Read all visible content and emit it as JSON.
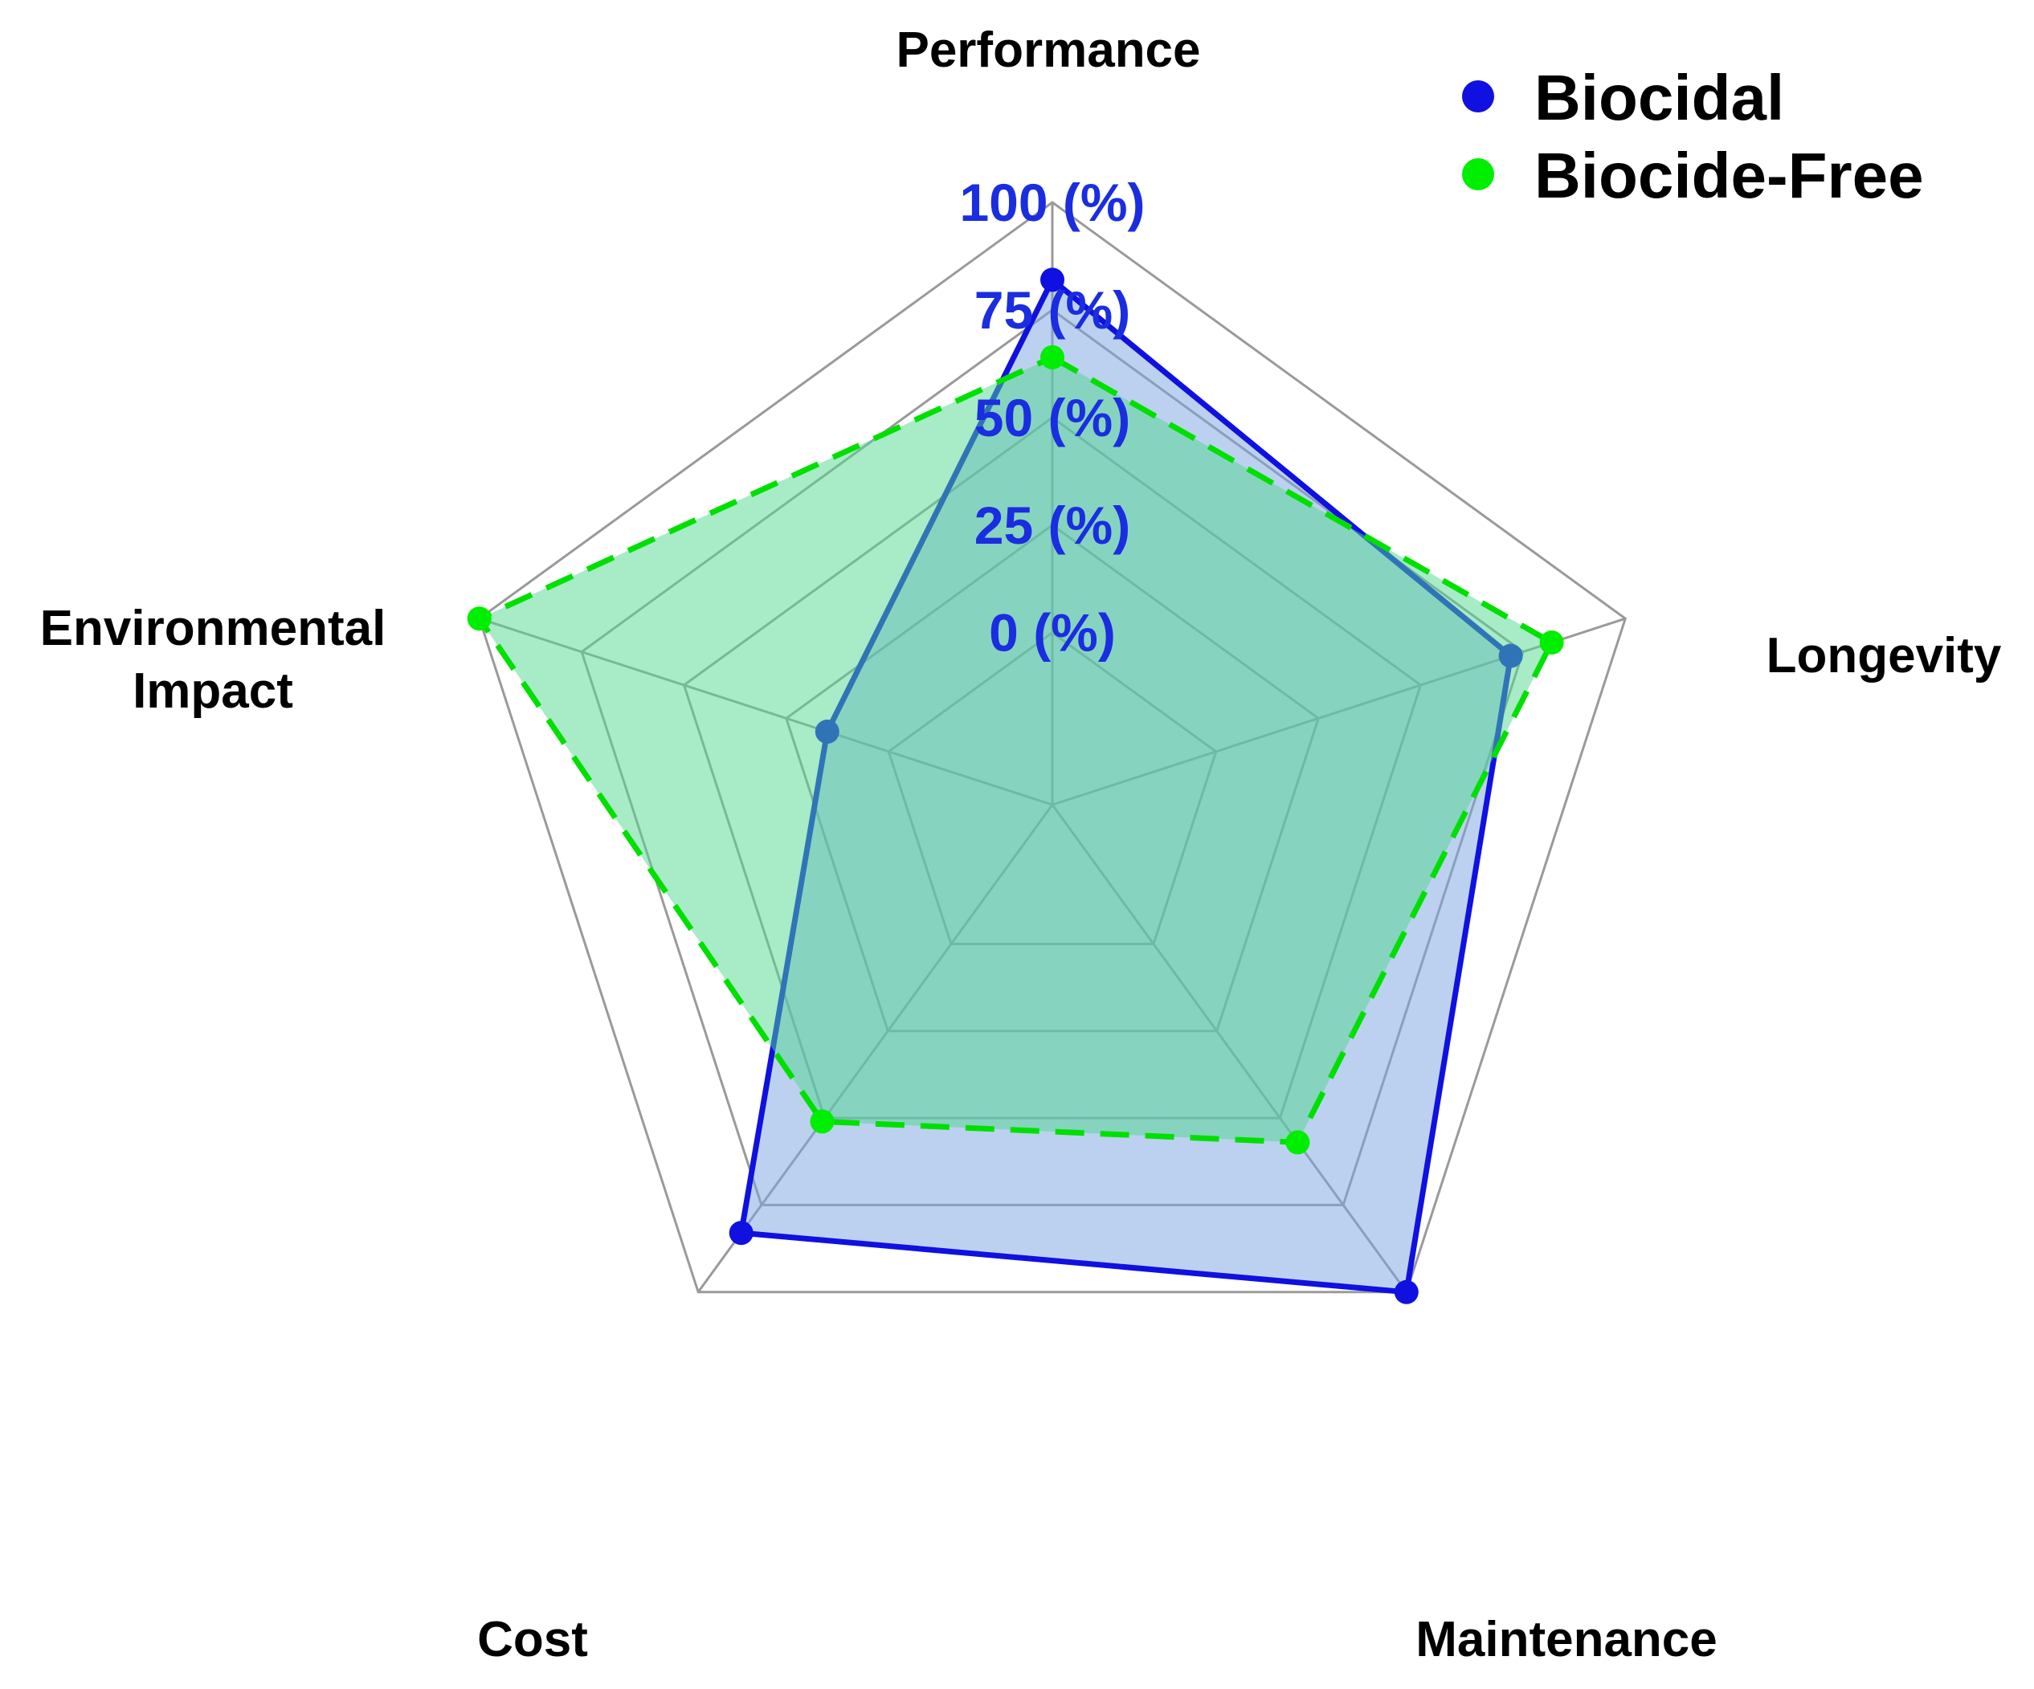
{
  "chart_data": {
    "type": "radar",
    "axes": [
      "Performance",
      "Longevity",
      "Maintenance",
      "Cost",
      "Environmental Impact"
    ],
    "axis_label_lines": [
      [
        "Performance"
      ],
      [
        "Longevity"
      ],
      [
        "Maintenance"
      ],
      [
        "Cost"
      ],
      [
        "Environmental",
        "Impact"
      ]
    ],
    "rmin": -40,
    "rmax": 100,
    "ticks": [
      {
        "value": 0,
        "label": "0 (%)"
      },
      {
        "value": 25,
        "label": "25 (%)"
      },
      {
        "value": 50,
        "label": "50 (%)"
      },
      {
        "value": 75,
        "label": "75 (%)"
      },
      {
        "value": 100,
        "label": "100 (%)"
      }
    ],
    "series": [
      {
        "name": "Biocidal",
        "values": [
          82,
          72,
          100,
          83,
          15
        ],
        "line_color": "#1010e0",
        "fill_color": "#7aa3e0",
        "marker_color": "#1010e0",
        "dashed": false
      },
      {
        "name": "Biocide-Free",
        "values": [
          64,
          82,
          57,
          51,
          100
        ],
        "line_color": "#00e000",
        "fill_color": "#4fd890",
        "marker_color": "#00ee00",
        "dashed": true
      }
    ],
    "legend": {
      "position": "top-right"
    },
    "colors": {
      "grid": "#9a9a9a",
      "tick_text": "#1a2de0"
    }
  }
}
